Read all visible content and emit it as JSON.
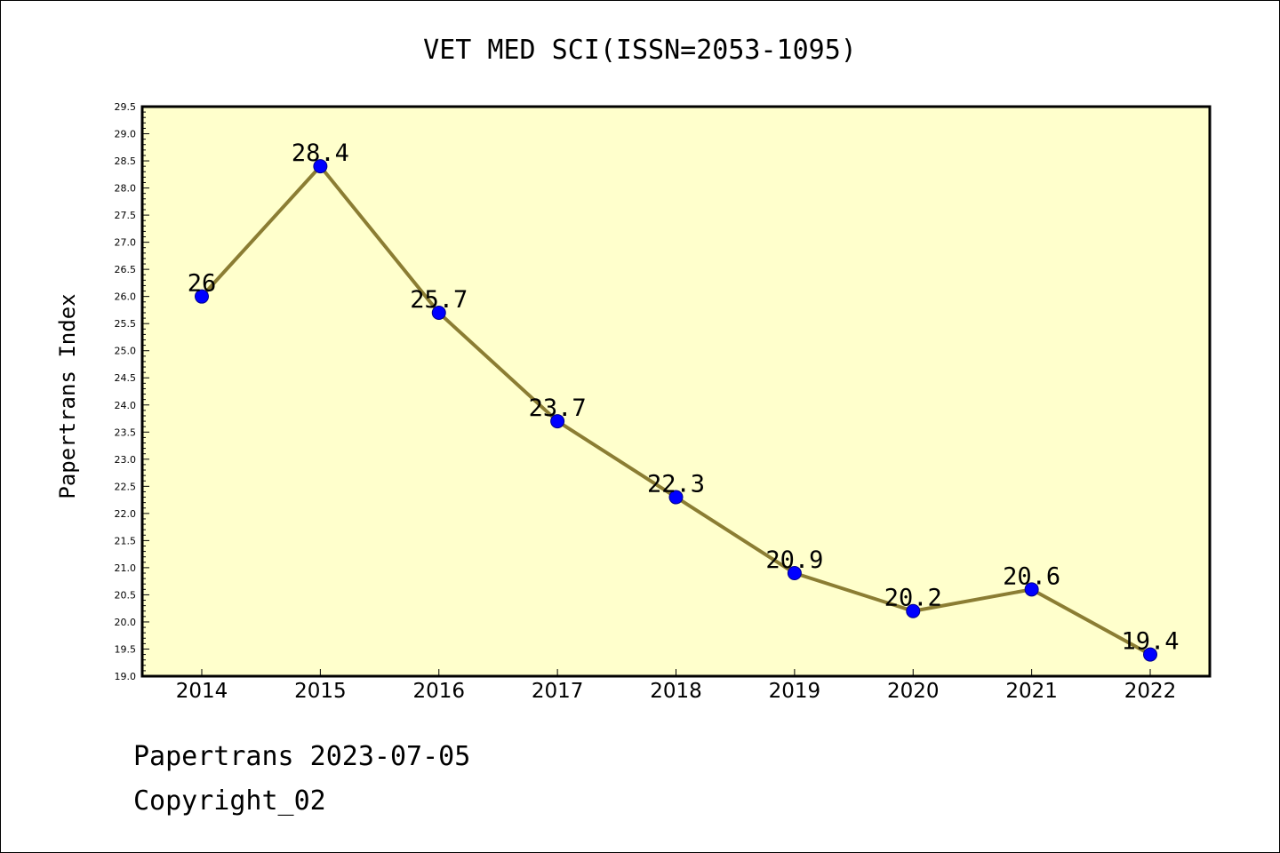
{
  "footer": {
    "line1": "Papertrans 2023-07-05",
    "line2": "Copyright_02"
  },
  "colors": {
    "plot_background": "#ffffcc",
    "line": "#8b7d33",
    "marker": "#0000ff"
  },
  "chart_data": {
    "type": "line",
    "title": "VET MED SCI(ISSN=2053-1095)",
    "xlabel": "",
    "ylabel": "Papertrans Index",
    "categories": [
      "2014",
      "2015",
      "2016",
      "2017",
      "2018",
      "2019",
      "2020",
      "2021",
      "2022"
    ],
    "series": [
      {
        "values": [
          26,
          28.4,
          25.7,
          23.7,
          22.3,
          20.9,
          20.2,
          20.6,
          19.4
        ],
        "data_labels": [
          "26",
          "28.4",
          "25.7",
          "23.7",
          "22.3",
          "20.9",
          "20.2",
          "20.6",
          "19.4"
        ]
      }
    ],
    "ylim": [
      19.0,
      29.5
    ],
    "y_tick_step": 0.5,
    "grid": false,
    "legend": "none"
  }
}
